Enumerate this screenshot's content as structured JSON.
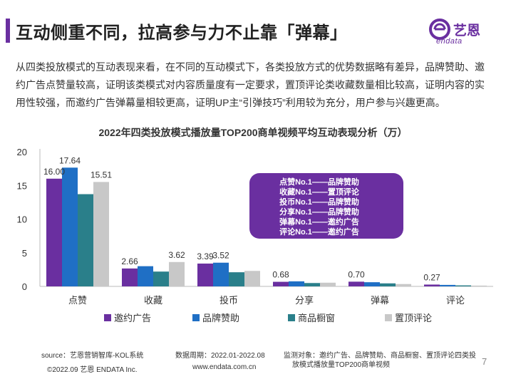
{
  "header": {
    "title": "互动侧重不同，拉高参与力不止靠「弹幕」",
    "logo_cn": "艺恩",
    "logo_en": "endata"
  },
  "intro": {
    "text": "从四类投放模式的互动表现来看，在不同的互动模式下，各类投放方式的优势数据略有差异，品牌赞助、邀约广告点赞量较高，证明该类模式对内容质量度有一定要求，置顶评论类收藏数量相比较高，证明内容的实用性较强，而邀约广告弹幕量相较更高，证明UP主“引弹技巧”利用较为充分，用户参与兴趣更高。"
  },
  "callout": {
    "lines": [
      "点赞No.1——品牌赞助",
      "收藏No.1——置顶评论",
      "投币No.1——品牌赞助",
      "分享No.1——品牌赞助",
      "弹幕No.1——邀约广告",
      "评论No.1——邀约广告"
    ]
  },
  "chart_data": {
    "type": "bar",
    "title": "2022年四类投放模式播放量TOP200商单视频平均互动表现分析（万）",
    "categories": [
      "点赞",
      "收藏",
      "投币",
      "分享",
      "弹幕",
      "评论"
    ],
    "ylim": [
      0,
      20
    ],
    "yticks": [
      0,
      5,
      10,
      15,
      20
    ],
    "grid": false,
    "legend_position": "bottom",
    "series": [
      {
        "name": "邀约广告",
        "color": "#6a2fa0",
        "values": [
          16.0,
          2.66,
          3.39,
          0.68,
          0.7,
          0.27
        ]
      },
      {
        "name": "品牌赞助",
        "color": "#1f6fc5",
        "values": [
          17.64,
          3.0,
          3.52,
          0.75,
          0.62,
          0.22
        ]
      },
      {
        "name": "商品橱窗",
        "color": "#2a7f8a",
        "values": [
          13.7,
          2.2,
          2.1,
          0.5,
          0.45,
          0.15
        ]
      },
      {
        "name": "置顶评论",
        "color": "#c8c8c8",
        "values": [
          15.51,
          3.62,
          2.3,
          0.55,
          0.35,
          0.12
        ]
      }
    ],
    "data_labels": [
      {
        "category": "点赞",
        "series": 0,
        "text": "16.00"
      },
      {
        "category": "点赞",
        "series": 1,
        "text": "17.64"
      },
      {
        "category": "点赞",
        "series": 3,
        "text": "15.51"
      },
      {
        "category": "收藏",
        "series": 0,
        "text": "2.66"
      },
      {
        "category": "收藏",
        "series": 3,
        "text": "3.62"
      },
      {
        "category": "投币",
        "series": 0,
        "text": "3.39"
      },
      {
        "category": "投币",
        "series": 1,
        "text": "3.52"
      },
      {
        "category": "分享",
        "series": 0,
        "text": "0.68"
      },
      {
        "category": "弹幕",
        "series": 0,
        "text": "0.70"
      },
      {
        "category": "评论",
        "series": 0,
        "text": "0.27"
      }
    ]
  },
  "footer": {
    "source": "source：艺恩营销智库-KOL系统",
    "period": "数据周期：2022.01-2022.08",
    "target_line1": "监测对象：邀约广告、品牌赞助、商品橱窗、置顶评论四类投",
    "target_line2": "放模式播放量TOP200商单视频",
    "copyright": "©2022.09 艺恩 ENDATA Inc.",
    "url": "www.endata.com.cn",
    "page": "7"
  }
}
